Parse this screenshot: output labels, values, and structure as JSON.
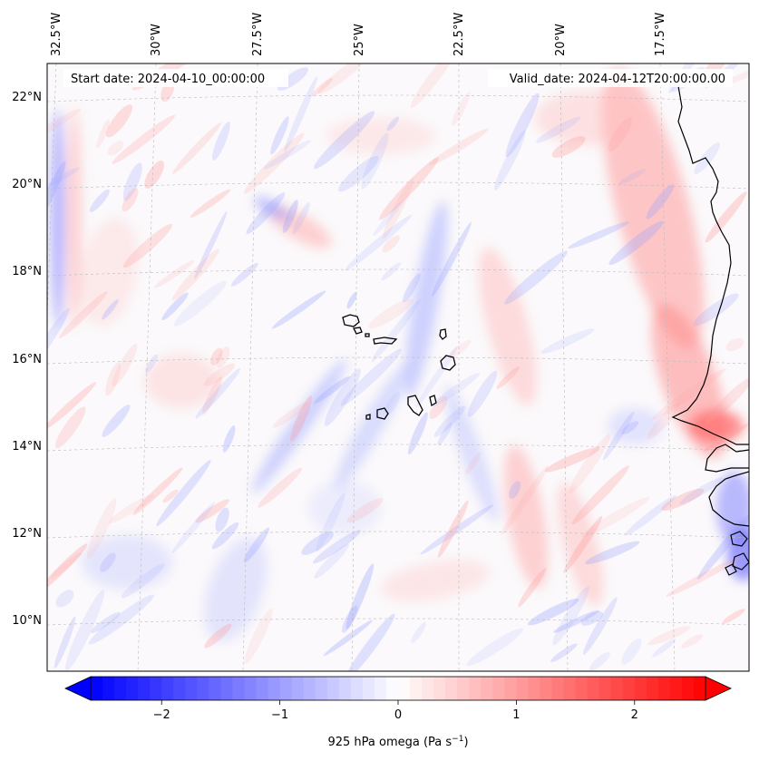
{
  "map": {
    "start_date": "Start date: 2024-04-10_00:00:00",
    "valid_date": "Valid_date: 2024-04-12T20:00:00.00",
    "lon_ticks": [
      "32.5°W",
      "30°W",
      "27.5°W",
      "25°W",
      "22.5°W",
      "20°W",
      "17.5°W"
    ],
    "lat_ticks": [
      "22°N",
      "20°N",
      "18°N",
      "16°N",
      "14°N",
      "12°N",
      "10°N"
    ]
  },
  "colorbar": {
    "min": -2.6,
    "max": 2.6,
    "ticks": [
      {
        "value": -2,
        "label": "−2"
      },
      {
        "value": -1,
        "label": "−1"
      },
      {
        "value": 0,
        "label": "0"
      },
      {
        "value": 1,
        "label": "1"
      },
      {
        "value": 2,
        "label": "2"
      }
    ],
    "label_main": "925 hPa omega (Pa s",
    "label_sup": "−1",
    "label_end": ")",
    "colors": {
      "negative": "#0000ff",
      "zero": "#ffffff",
      "positive": "#ff0000"
    }
  }
}
